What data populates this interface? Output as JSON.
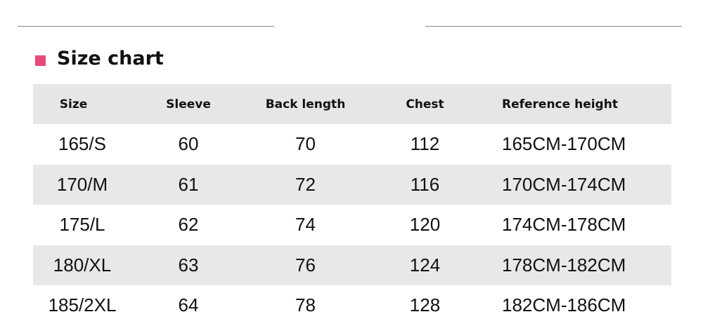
{
  "title": "Size chart",
  "accent_color": "#e84a7a",
  "table": {
    "headers": [
      "Size",
      "Sleeve",
      "Back length",
      "Chest",
      "Reference height"
    ],
    "rows": [
      [
        "165/S",
        "60",
        "70",
        "112",
        "165CM-170CM"
      ],
      [
        "170/M",
        "61",
        "72",
        "116",
        "170CM-174CM"
      ],
      [
        "175/L",
        "62",
        "74",
        "120",
        "174CM-178CM"
      ],
      [
        "180/XL",
        "63",
        "76",
        "124",
        "178CM-182CM"
      ],
      [
        "185/2XL",
        "64",
        "78",
        "128",
        "182CM-186CM"
      ]
    ]
  }
}
